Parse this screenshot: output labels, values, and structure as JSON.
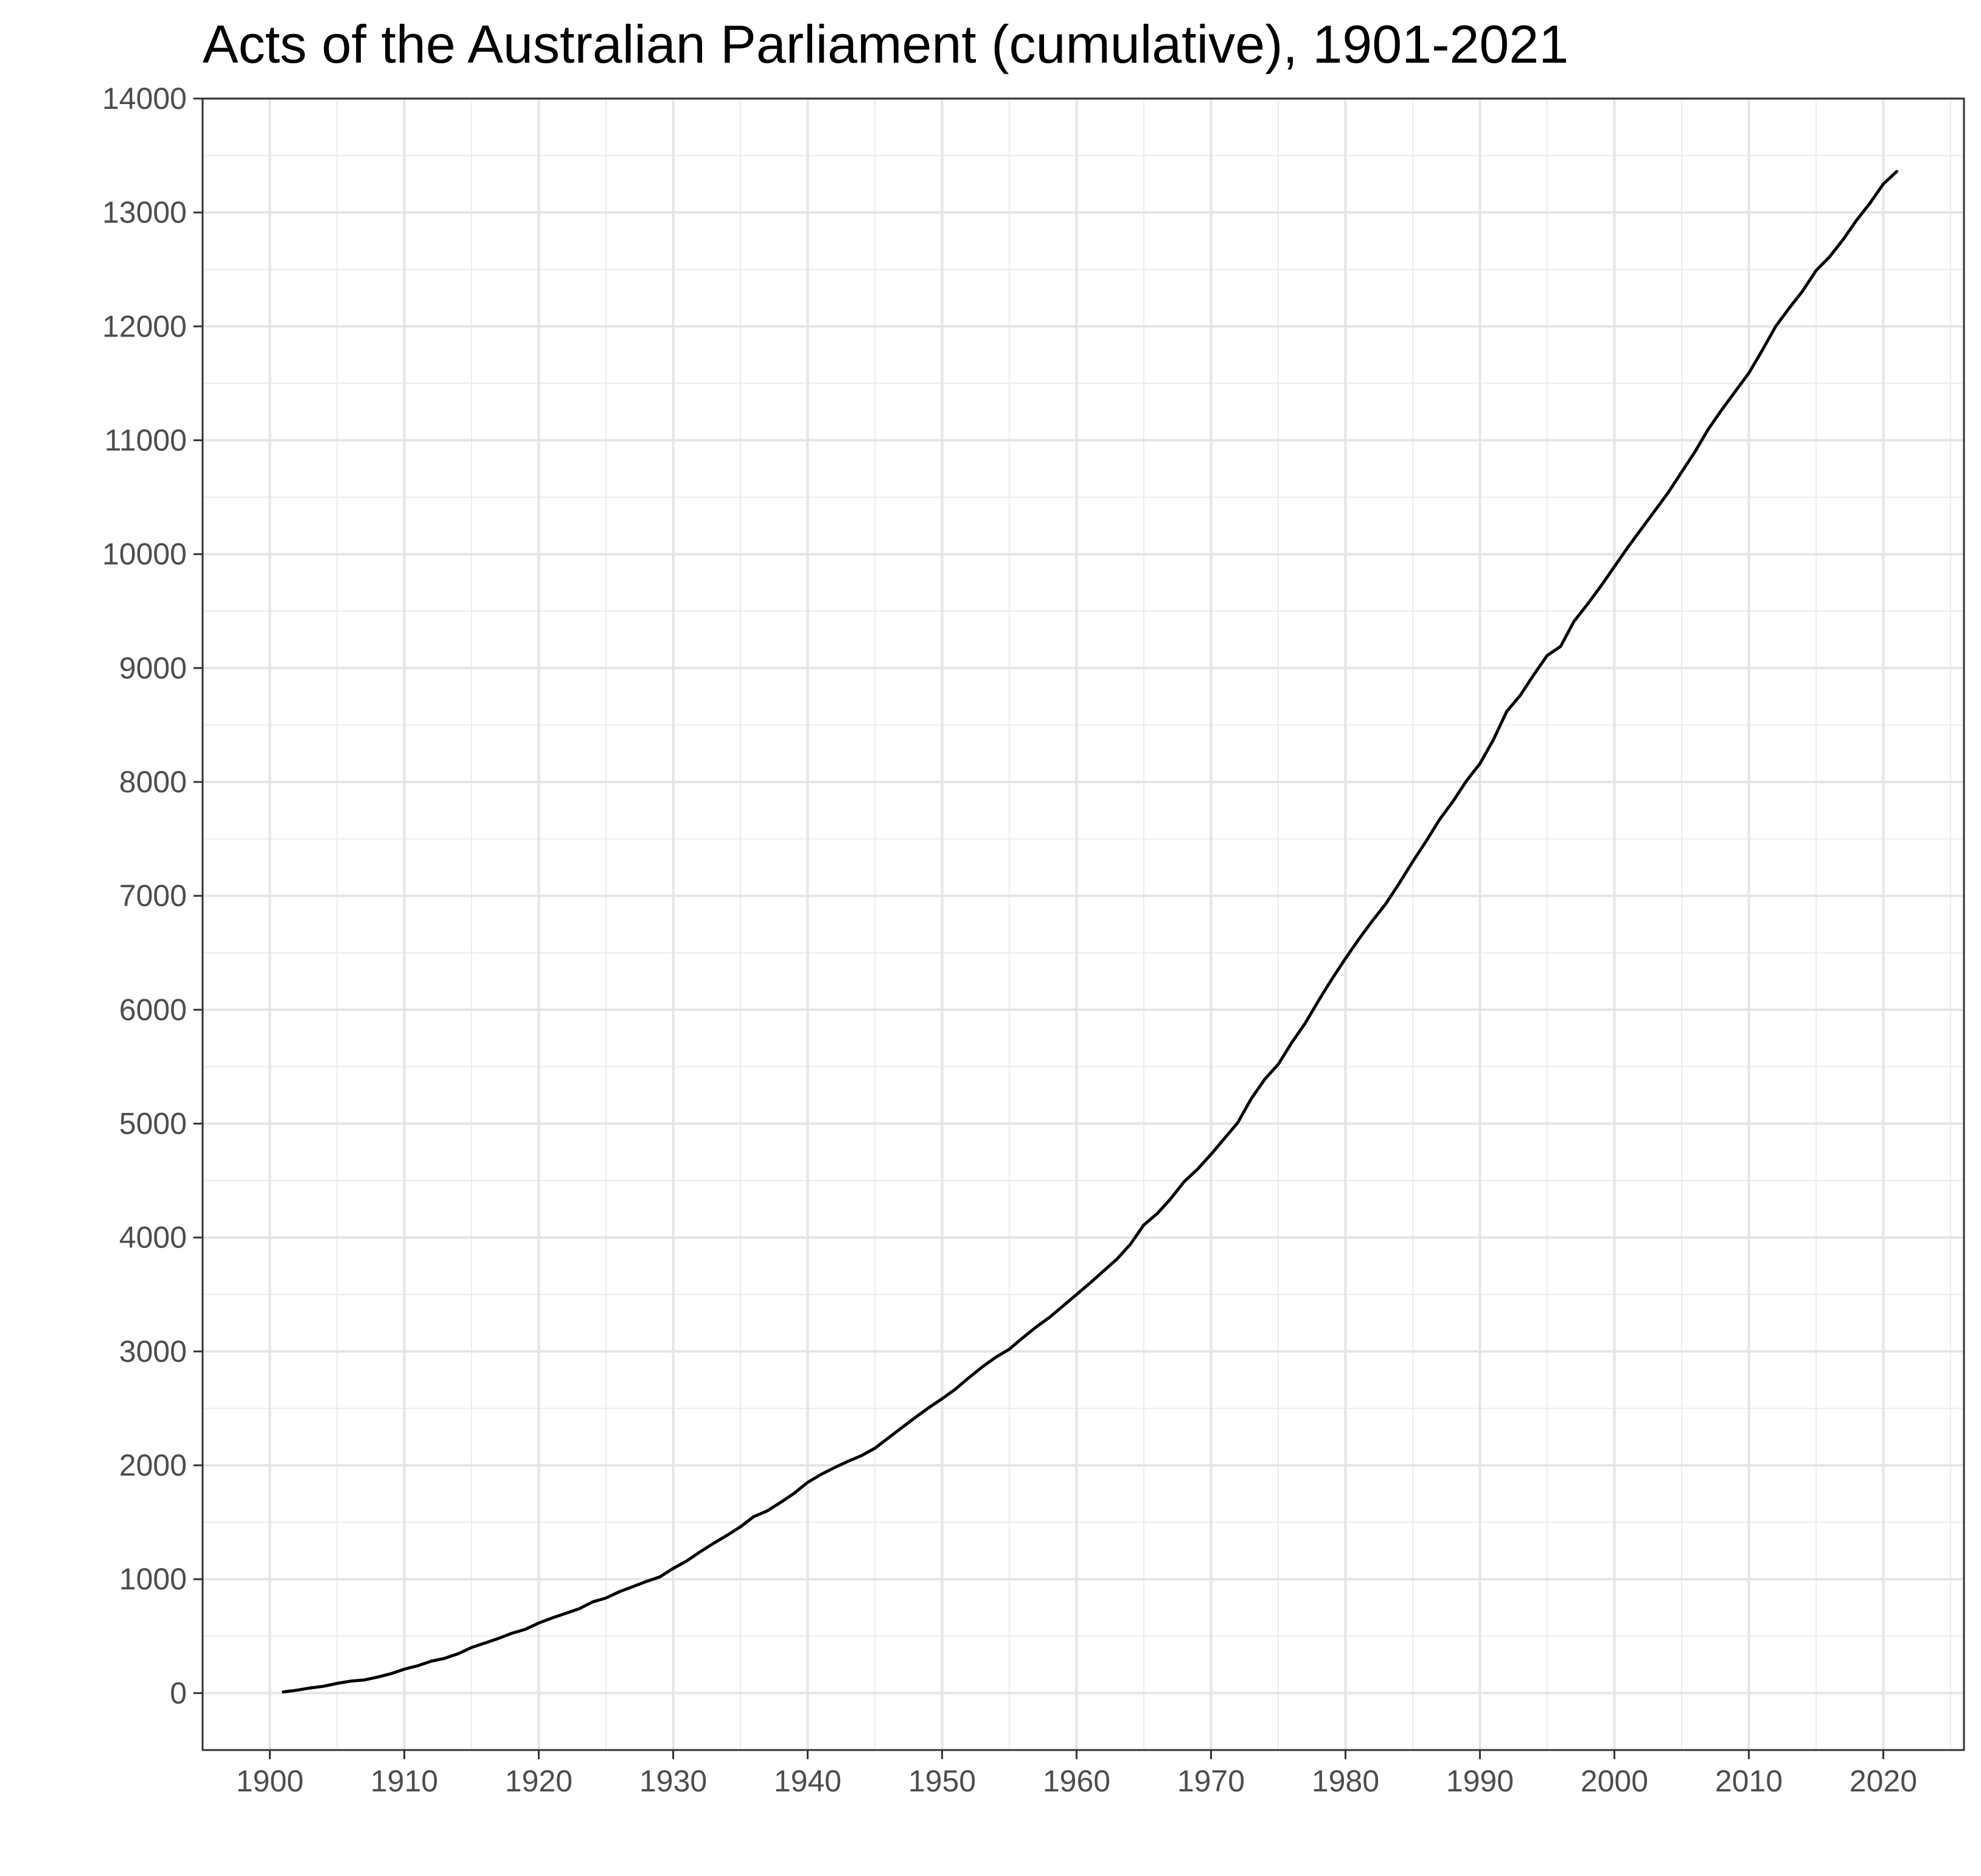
{
  "chart_data": {
    "type": "line",
    "title": "Acts of the Australian Parliament (cumulative), 1901-2021",
    "xlabel": "",
    "ylabel": "",
    "xlim": [
      1895,
      2026
    ],
    "ylim": [
      -500,
      14000
    ],
    "x_ticks": [
      1900,
      1910,
      1920,
      1930,
      1940,
      1950,
      1960,
      1970,
      1980,
      1990,
      2000,
      2010,
      2020
    ],
    "x_tick_labels": [
      "1900",
      "1910",
      "1920",
      "1930",
      "1940",
      "1950",
      "1960",
      "1970",
      "1980",
      "1990",
      "2000",
      "2010",
      "2020"
    ],
    "y_ticks": [
      0,
      1000,
      2000,
      3000,
      4000,
      5000,
      6000,
      7000,
      8000,
      9000,
      10000,
      11000,
      12000,
      13000,
      14000
    ],
    "y_tick_labels": [
      "0",
      "1000",
      "2000",
      "3000",
      "4000",
      "5000",
      "6000",
      "7000",
      "8000",
      "9000",
      "10000",
      "11000",
      "12000",
      "13000",
      "14000"
    ],
    "grid": true,
    "legend": "none",
    "line_color": "#000000",
    "series": [
      {
        "x": [
          1901,
          1902,
          1903,
          1904,
          1905,
          1906,
          1907,
          1908,
          1909,
          1910,
          1911,
          1912,
          1913,
          1914,
          1915,
          1916,
          1917,
          1918,
          1919,
          1920,
          1921,
          1922,
          1923,
          1924,
          1925,
          1926,
          1927,
          1928,
          1929,
          1930,
          1931,
          1932,
          1933,
          1934,
          1935,
          1936,
          1937,
          1938,
          1939,
          1940,
          1941,
          1942,
          1943,
          1944,
          1945,
          1946,
          1947,
          1948,
          1949,
          1950,
          1951,
          1952,
          1953,
          1954,
          1955,
          1956,
          1957,
          1958,
          1959,
          1960,
          1961,
          1962,
          1963,
          1964,
          1965,
          1966,
          1967,
          1968,
          1969,
          1970,
          1971,
          1972,
          1973,
          1974,
          1975,
          1976,
          1977,
          1978,
          1979,
          1980,
          1981,
          1982,
          1983,
          1984,
          1985,
          1986,
          1987,
          1988,
          1989,
          1990,
          1991,
          1992,
          1993,
          1994,
          1995,
          1996,
          1997,
          1998,
          1999,
          2000,
          2001,
          2002,
          2003,
          2004,
          2005,
          2006,
          2007,
          2008,
          2009,
          2010,
          2011,
          2012,
          2013,
          2014,
          2015,
          2016,
          2017,
          2018,
          2019,
          2020,
          2021
        ],
        "y": [
          10,
          25,
          45,
          60,
          85,
          105,
          115,
          140,
          170,
          210,
          240,
          280,
          305,
          345,
          400,
          440,
          480,
          525,
          560,
          615,
          660,
          700,
          740,
          800,
          835,
          890,
          935,
          980,
          1020,
          1095,
          1160,
          1240,
          1315,
          1385,
          1460,
          1550,
          1600,
          1675,
          1755,
          1850,
          1920,
          1980,
          2035,
          2085,
          2150,
          2240,
          2330,
          2420,
          2505,
          2585,
          2670,
          2770,
          2865,
          2950,
          3020,
          3120,
          3215,
          3300,
          3400,
          3500,
          3600,
          3705,
          3810,
          3940,
          4110,
          4210,
          4340,
          4490,
          4600,
          4730,
          4870,
          5010,
          5220,
          5390,
          5520,
          5710,
          5880,
          6080,
          6270,
          6450,
          6620,
          6780,
          6930,
          7110,
          7300,
          7480,
          7670,
          7830,
          8010,
          8160,
          8370,
          8620,
          8760,
          8940,
          9110,
          9190,
          9410,
          9560,
          9720,
          9890,
          10060,
          10220,
          10380,
          10540,
          10720,
          10900,
          11100,
          11270,
          11430,
          11590,
          11790,
          12000,
          12160,
          12310,
          12490,
          12610,
          12760,
          12930,
          13080,
          13250,
          13360
        ]
      }
    ]
  }
}
